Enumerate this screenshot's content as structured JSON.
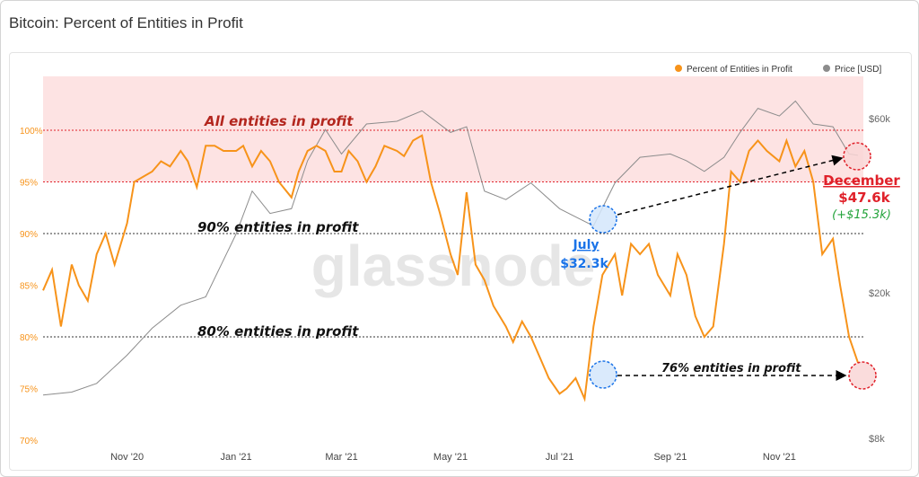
{
  "title": "Bitcoin: Percent of Entities in Profit",
  "colors": {
    "profit": "#f7931a",
    "price": "#8c8c8c",
    "band": "#fde3e3",
    "red": "#e0212a",
    "blue": "#1a73e8",
    "green": "#22a33a"
  },
  "chart_data": {
    "type": "line",
    "title": "Bitcoin: Percent of Entities in Profit",
    "legend": {
      "position": "top-right",
      "items": [
        "Percent of Entities in Profit",
        "Price [USD]"
      ]
    },
    "x_ticks": [
      "Nov '20",
      "Jan '21",
      "Mar '21",
      "May '21",
      "Jul '21",
      "Sep '21",
      "Nov '21"
    ],
    "y_left": {
      "ticks": [
        "100%",
        "95%",
        "90%",
        "85%",
        "80%",
        "75%",
        "70%"
      ],
      "range": [
        70,
        104
      ]
    },
    "y_right": {
      "scale": "log",
      "ticks": [
        "$60k",
        "$20k",
        "$8k"
      ],
      "range": [
        8000,
        80000
      ]
    },
    "grid": false,
    "series": [
      {
        "name": "Percent of Entities in Profit",
        "axis": "left",
        "x": [
          "2020-09-15",
          "2020-09-20",
          "2020-09-25",
          "2020-10-01",
          "2020-10-05",
          "2020-10-10",
          "2020-10-15",
          "2020-10-20",
          "2020-10-25",
          "2020-11-01",
          "2020-11-05",
          "2020-11-10",
          "2020-11-15",
          "2020-11-20",
          "2020-11-25",
          "2020-12-01",
          "2020-12-05",
          "2020-12-10",
          "2020-12-15",
          "2020-12-20",
          "2020-12-25",
          "2021-01-01",
          "2021-01-05",
          "2021-01-10",
          "2021-01-15",
          "2021-01-20",
          "2021-01-25",
          "2021-02-01",
          "2021-02-05",
          "2021-02-10",
          "2021-02-15",
          "2021-02-20",
          "2021-02-25",
          "2021-03-01",
          "2021-03-05",
          "2021-03-10",
          "2021-03-15",
          "2021-03-20",
          "2021-03-25",
          "2021-04-01",
          "2021-04-05",
          "2021-04-10",
          "2021-04-15",
          "2021-04-20",
          "2021-04-25",
          "2021-05-01",
          "2021-05-05",
          "2021-05-10",
          "2021-05-15",
          "2021-05-20",
          "2021-05-25",
          "2021-06-01",
          "2021-06-05",
          "2021-06-10",
          "2021-06-15",
          "2021-06-20",
          "2021-06-25",
          "2021-07-01",
          "2021-07-05",
          "2021-07-10",
          "2021-07-15",
          "2021-07-20",
          "2021-07-25",
          "2021-08-01",
          "2021-08-05",
          "2021-08-10",
          "2021-08-15",
          "2021-08-20",
          "2021-08-25",
          "2021-09-01",
          "2021-09-05",
          "2021-09-10",
          "2021-09-15",
          "2021-09-20",
          "2021-09-25",
          "2021-10-01",
          "2021-10-05",
          "2021-10-10",
          "2021-10-15",
          "2021-10-20",
          "2021-10-25",
          "2021-11-01",
          "2021-11-05",
          "2021-11-10",
          "2021-11-15",
          "2021-11-20",
          "2021-11-25",
          "2021-12-01",
          "2021-12-05",
          "2021-12-10",
          "2021-12-15"
        ],
        "values": [
          84.5,
          86.5,
          81,
          87,
          85,
          83.5,
          88,
          90,
          87,
          91,
          95,
          95.5,
          96,
          97,
          96.5,
          98,
          97,
          94.5,
          98.5,
          98.5,
          98,
          98,
          98.5,
          96.5,
          98,
          97,
          95,
          93.5,
          96,
          98,
          98.5,
          98,
          96,
          96,
          98,
          97,
          95,
          96.5,
          98.5,
          98,
          97.5,
          99,
          99.5,
          95,
          92,
          88,
          86,
          94,
          87,
          85.5,
          83,
          81,
          79.5,
          81.5,
          80,
          78,
          76,
          74.5,
          75,
          76,
          74,
          81,
          86,
          88,
          84,
          89,
          88,
          89,
          86,
          84,
          88,
          86,
          82,
          80,
          81,
          89,
          96,
          95,
          98,
          99,
          98,
          97,
          99,
          96.5,
          98,
          95,
          88,
          89.5,
          85,
          80,
          77.5
        ]
      },
      {
        "name": "Price [USD]",
        "axis": "right",
        "x": [
          "2020-09-15",
          "2020-10-01",
          "2020-10-15",
          "2020-11-01",
          "2020-11-15",
          "2020-12-01",
          "2020-12-15",
          "2021-01-01",
          "2021-01-10",
          "2021-01-20",
          "2021-02-01",
          "2021-02-10",
          "2021-02-20",
          "2021-03-01",
          "2021-03-15",
          "2021-04-01",
          "2021-04-15",
          "2021-05-01",
          "2021-05-10",
          "2021-05-20",
          "2021-06-01",
          "2021-06-15",
          "2021-07-01",
          "2021-07-20",
          "2021-08-01",
          "2021-08-15",
          "2021-09-01",
          "2021-09-10",
          "2021-09-20",
          "2021-10-01",
          "2021-10-10",
          "2021-10-20",
          "2021-11-01",
          "2021-11-10",
          "2021-11-20",
          "2021-12-01",
          "2021-12-10",
          "2021-12-15"
        ],
        "values": [
          10500,
          10700,
          11300,
          13500,
          16000,
          18500,
          19500,
          29000,
          38000,
          33000,
          34000,
          46000,
          56000,
          48000,
          58000,
          59000,
          63000,
          55000,
          57000,
          38000,
          36000,
          40000,
          34000,
          30500,
          40000,
          47000,
          48000,
          46000,
          43000,
          47000,
          55000,
          64000,
          61000,
          67000,
          58000,
          57000,
          48000,
          47600
        ]
      }
    ],
    "annotations": [
      "All entities in profit",
      "90% entities in profit",
      "80% entities in profit",
      "76% entities in profit",
      "July",
      "$32.3k",
      "December",
      "$47.6k",
      "(+$15.3k)"
    ],
    "watermark": "glassnode"
  }
}
